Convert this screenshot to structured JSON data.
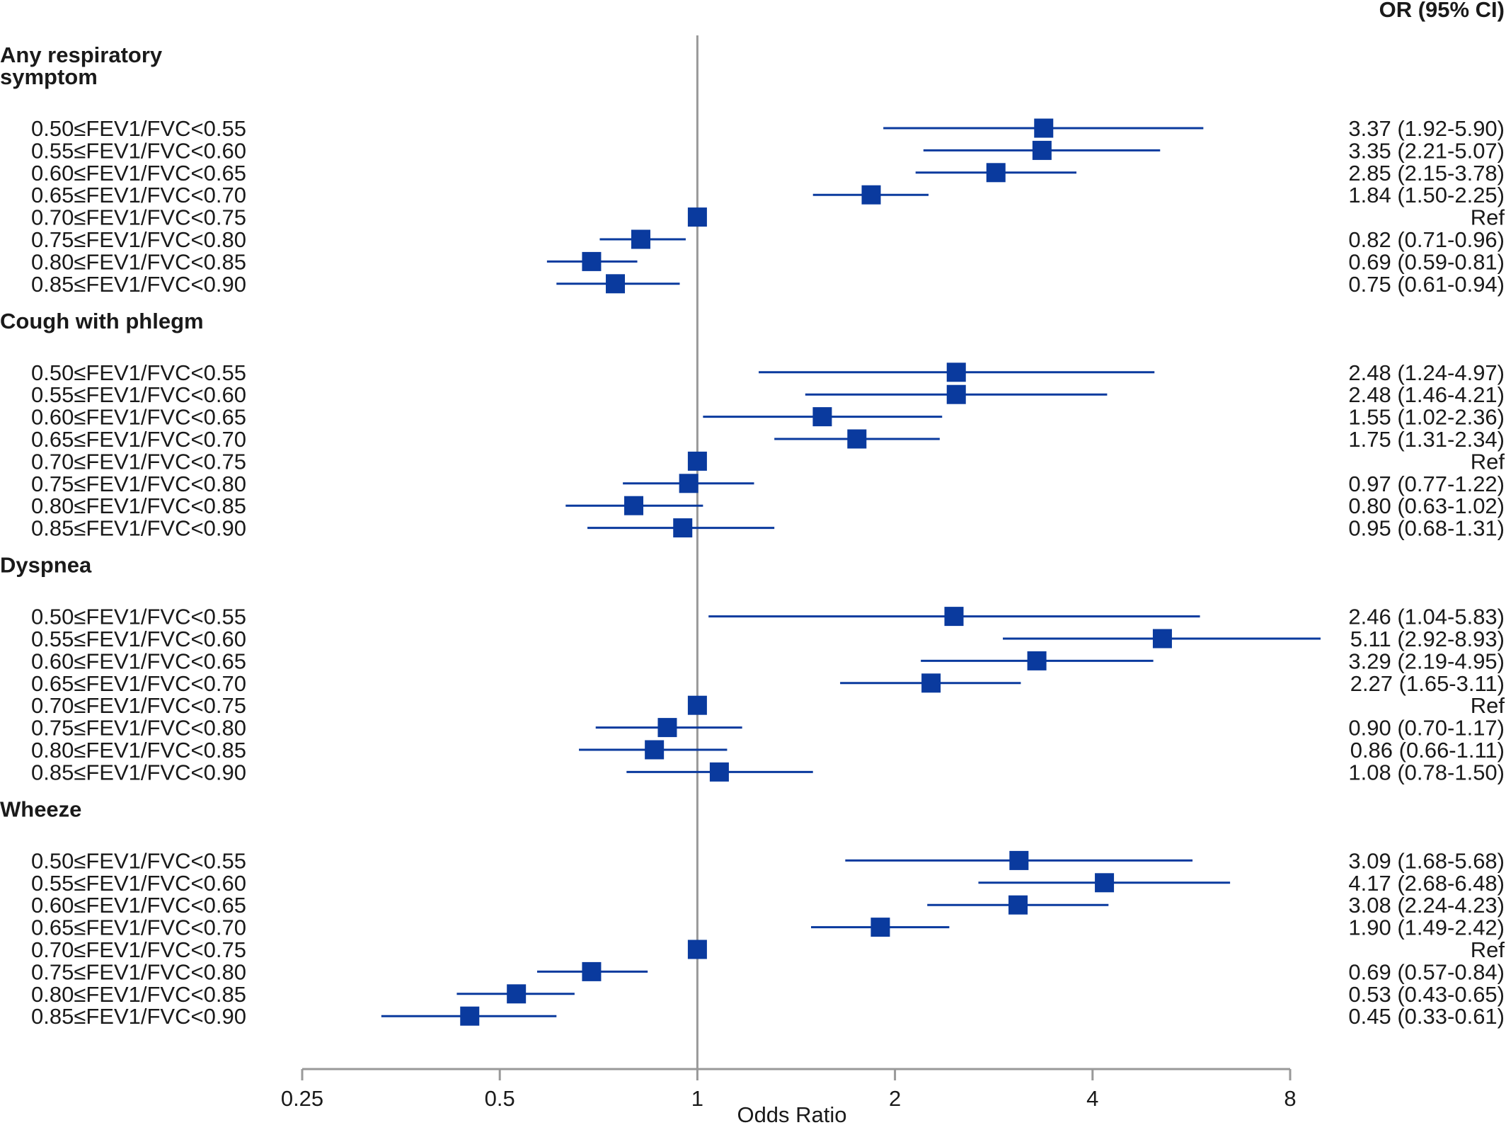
{
  "chart_data": {
    "type": "forest",
    "xlabel": "Odds Ratio",
    "xscale": "log2",
    "xlim": [
      0.25,
      8
    ],
    "xticks": [
      0.25,
      0.5,
      1,
      2,
      4,
      8
    ],
    "xtick_labels": [
      "0.25",
      "0.5",
      "1",
      "2",
      "4",
      "8"
    ],
    "reference_line": 1,
    "right_column_header": "OR (95% CI)",
    "marker_color": "#0a3a9e",
    "reference_line_color": "#999999",
    "groups": [
      {
        "title": "Any respiratory symptom",
        "title_lines": [
          "Any respiratory",
          "symptom"
        ],
        "rows": [
          {
            "label": "0.50≤FEV1/FVC<0.55",
            "or": 3.37,
            "lo": 1.92,
            "hi": 5.9,
            "text": "3.37 (1.92-5.90)"
          },
          {
            "label": "0.55≤FEV1/FVC<0.60",
            "or": 3.35,
            "lo": 2.21,
            "hi": 5.07,
            "text": "3.35 (2.21-5.07)"
          },
          {
            "label": "0.60≤FEV1/FVC<0.65",
            "or": 2.85,
            "lo": 2.15,
            "hi": 3.78,
            "text": "2.85 (2.15-3.78)"
          },
          {
            "label": "0.65≤FEV1/FVC<0.70",
            "or": 1.84,
            "lo": 1.5,
            "hi": 2.25,
            "text": "1.84 (1.50-2.25)"
          },
          {
            "label": "0.70≤FEV1/FVC<0.75",
            "or": 1.0,
            "lo": null,
            "hi": null,
            "text": "Ref"
          },
          {
            "label": "0.75≤FEV1/FVC<0.80",
            "or": 0.82,
            "lo": 0.71,
            "hi": 0.96,
            "text": "0.82 (0.71-0.96)"
          },
          {
            "label": "0.80≤FEV1/FVC<0.85",
            "or": 0.69,
            "lo": 0.59,
            "hi": 0.81,
            "text": "0.69 (0.59-0.81)"
          },
          {
            "label": "0.85≤FEV1/FVC<0.90",
            "or": 0.75,
            "lo": 0.61,
            "hi": 0.94,
            "text": "0.75 (0.61-0.94)"
          }
        ]
      },
      {
        "title": "Cough with phlegm",
        "title_lines": [
          "Cough with phlegm"
        ],
        "rows": [
          {
            "label": "0.50≤FEV1/FVC<0.55",
            "or": 2.48,
            "lo": 1.24,
            "hi": 4.97,
            "text": "2.48 (1.24-4.97)"
          },
          {
            "label": "0.55≤FEV1/FVC<0.60",
            "or": 2.48,
            "lo": 1.46,
            "hi": 4.21,
            "text": "2.48 (1.46-4.21)"
          },
          {
            "label": "0.60≤FEV1/FVC<0.65",
            "or": 1.55,
            "lo": 1.02,
            "hi": 2.36,
            "text": "1.55 (1.02-2.36)"
          },
          {
            "label": "0.65≤FEV1/FVC<0.70",
            "or": 1.75,
            "lo": 1.31,
            "hi": 2.34,
            "text": "1.75 (1.31-2.34)"
          },
          {
            "label": "0.70≤FEV1/FVC<0.75",
            "or": 1.0,
            "lo": null,
            "hi": null,
            "text": "Ref"
          },
          {
            "label": "0.75≤FEV1/FVC<0.80",
            "or": 0.97,
            "lo": 0.77,
            "hi": 1.22,
            "text": "0.97 (0.77-1.22)"
          },
          {
            "label": "0.80≤FEV1/FVC<0.85",
            "or": 0.8,
            "lo": 0.63,
            "hi": 1.02,
            "text": "0.80 (0.63-1.02)"
          },
          {
            "label": "0.85≤FEV1/FVC<0.90",
            "or": 0.95,
            "lo": 0.68,
            "hi": 1.31,
            "text": "0.95 (0.68-1.31)"
          }
        ]
      },
      {
        "title": "Dyspnea",
        "title_lines": [
          "Dyspnea"
        ],
        "rows": [
          {
            "label": "0.50≤FEV1/FVC<0.55",
            "or": 2.46,
            "lo": 1.04,
            "hi": 5.83,
            "text": "2.46 (1.04-5.83)"
          },
          {
            "label": "0.55≤FEV1/FVC<0.60",
            "or": 5.11,
            "lo": 2.92,
            "hi": 8.93,
            "text": "5.11 (2.92-8.93)"
          },
          {
            "label": "0.60≤FEV1/FVC<0.65",
            "or": 3.29,
            "lo": 2.19,
            "hi": 4.95,
            "text": "3.29 (2.19-4.95)"
          },
          {
            "label": "0.65≤FEV1/FVC<0.70",
            "or": 2.27,
            "lo": 1.65,
            "hi": 3.11,
            "text": "2.27 (1.65-3.11)"
          },
          {
            "label": "0.70≤FEV1/FVC<0.75",
            "or": 1.0,
            "lo": null,
            "hi": null,
            "text": "Ref"
          },
          {
            "label": "0.75≤FEV1/FVC<0.80",
            "or": 0.9,
            "lo": 0.7,
            "hi": 1.17,
            "text": "0.90 (0.70-1.17)"
          },
          {
            "label": "0.80≤FEV1/FVC<0.85",
            "or": 0.86,
            "lo": 0.66,
            "hi": 1.11,
            "text": "0.86 (0.66-1.11)"
          },
          {
            "label": "0.85≤FEV1/FVC<0.90",
            "or": 1.08,
            "lo": 0.78,
            "hi": 1.5,
            "text": "1.08 (0.78-1.50)"
          }
        ]
      },
      {
        "title": "Wheeze",
        "title_lines": [
          "Wheeze"
        ],
        "rows": [
          {
            "label": "0.50≤FEV1/FVC<0.55",
            "or": 3.09,
            "lo": 1.68,
            "hi": 5.68,
            "text": "3.09 (1.68-5.68)"
          },
          {
            "label": "0.55≤FEV1/FVC<0.60",
            "or": 4.17,
            "lo": 2.68,
            "hi": 6.48,
            "text": "4.17 (2.68-6.48)"
          },
          {
            "label": "0.60≤FEV1/FVC<0.65",
            "or": 3.08,
            "lo": 2.24,
            "hi": 4.23,
            "text": "3.08 (2.24-4.23)"
          },
          {
            "label": "0.65≤FEV1/FVC<0.70",
            "or": 1.9,
            "lo": 1.49,
            "hi": 2.42,
            "text": "1.90 (1.49-2.42)"
          },
          {
            "label": "0.70≤FEV1/FVC<0.75",
            "or": 1.0,
            "lo": null,
            "hi": null,
            "text": "Ref"
          },
          {
            "label": "0.75≤FEV1/FVC<0.80",
            "or": 0.69,
            "lo": 0.57,
            "hi": 0.84,
            "text": "0.69 (0.57-0.84)"
          },
          {
            "label": "0.80≤FEV1/FVC<0.85",
            "or": 0.53,
            "lo": 0.43,
            "hi": 0.65,
            "text": "0.53 (0.43-0.65)"
          },
          {
            "label": "0.85≤FEV1/FVC<0.90",
            "or": 0.45,
            "lo": 0.33,
            "hi": 0.61,
            "text": "0.45 (0.33-0.61)"
          }
        ]
      }
    ]
  }
}
